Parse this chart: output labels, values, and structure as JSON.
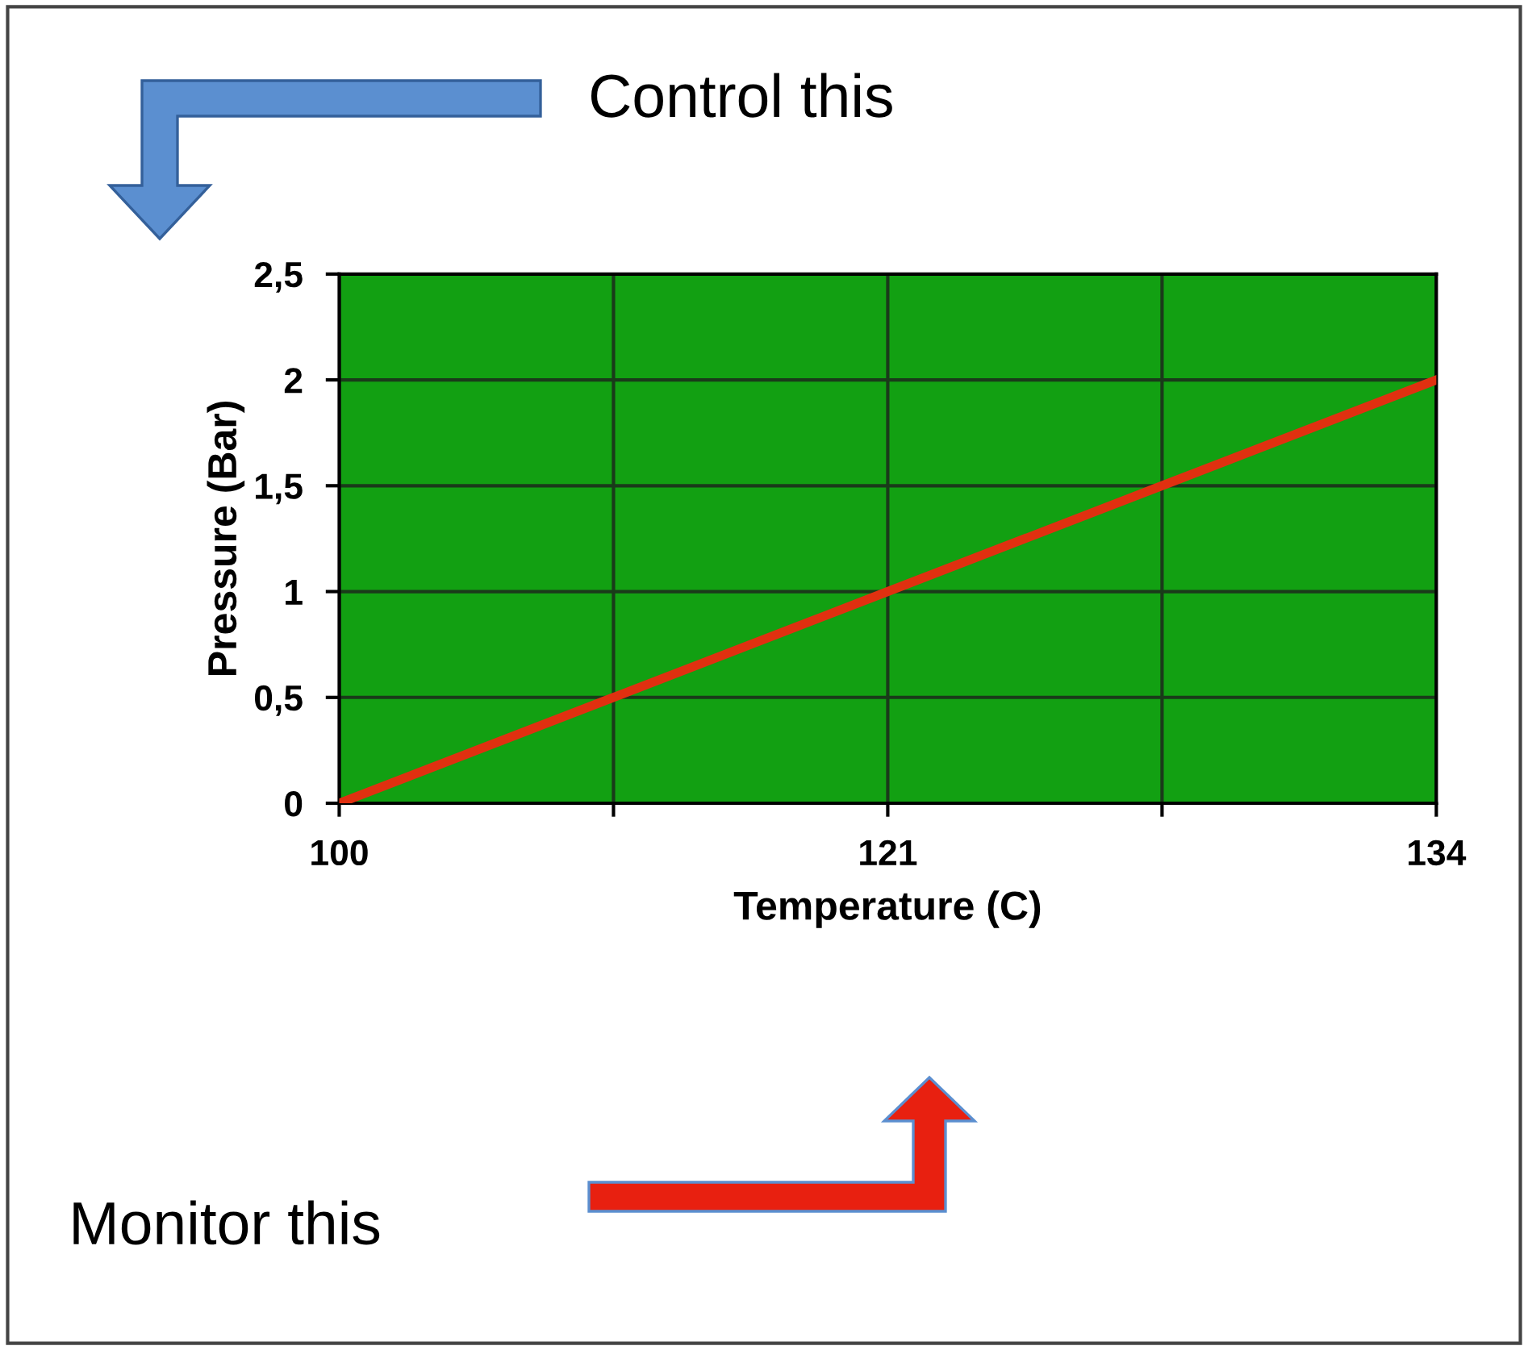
{
  "chart_data": {
    "type": "line",
    "xlabel": "Temperature (C)",
    "ylabel": "Pressure (Bar)",
    "categories": [
      "100",
      null,
      "121",
      null,
      "134"
    ],
    "series": [
      {
        "color": "#e03010",
        "values": [
          0,
          0.5,
          1,
          1.5,
          2
        ]
      }
    ],
    "ylim": [
      0,
      2.5
    ],
    "yticks": [
      0,
      {
        "value": 0.5,
        "label": "0,5"
      },
      1,
      {
        "value": 1.5,
        "label": "1,5"
      },
      2,
      {
        "value": 2.5,
        "label": "2,5"
      }
    ],
    "grid": true,
    "marker": "none",
    "line_style": "solid",
    "annotations": [
      "Control this",
      "Monitor this"
    ]
  }
}
